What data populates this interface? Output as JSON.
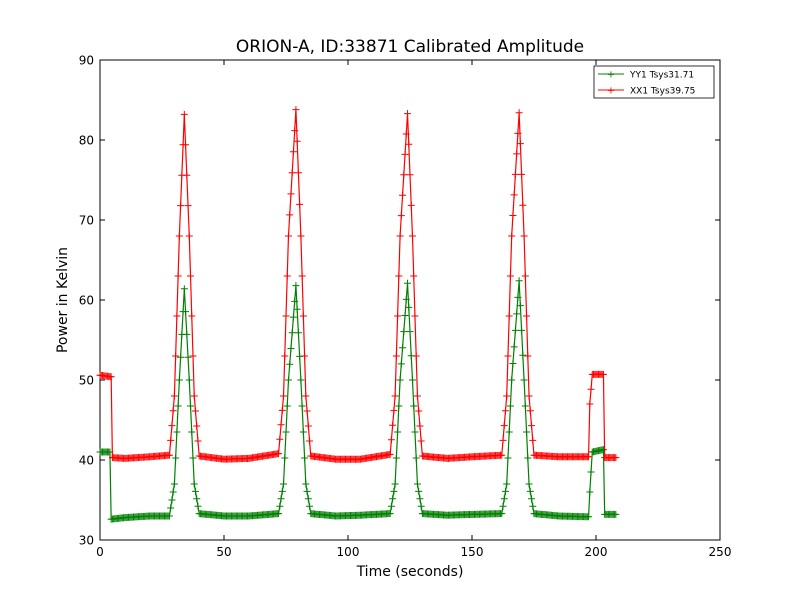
{
  "chart_data": {
    "type": "line",
    "title": "ORION-A, ID:33871 Calibrated Amplitude",
    "xlabel": "Time (seconds)",
    "ylabel": "Power in Kelvin",
    "xlim": [
      0,
      250
    ],
    "ylim": [
      30,
      90
    ],
    "xticks": [
      0,
      50,
      100,
      150,
      200,
      250
    ],
    "yticks": [
      30,
      40,
      50,
      60,
      70,
      80,
      90
    ],
    "grid": false,
    "legend_position": "top-right",
    "marker": "+",
    "series": [
      {
        "name": "YY1 Tsys31.71",
        "color": "#008000",
        "points": [
          [
            0,
            41
          ],
          [
            4,
            41
          ],
          [
            4.5,
            32.6
          ],
          [
            10,
            32.8
          ],
          [
            20,
            33
          ],
          [
            28,
            33
          ],
          [
            30,
            37
          ],
          [
            32,
            50
          ],
          [
            34,
            61.4
          ],
          [
            36,
            50
          ],
          [
            38,
            37
          ],
          [
            40,
            33.3
          ],
          [
            50,
            33
          ],
          [
            60,
            33
          ],
          [
            72,
            33.3
          ],
          [
            74,
            37
          ],
          [
            76,
            50
          ],
          [
            79,
            61.8
          ],
          [
            81,
            50
          ],
          [
            83,
            37
          ],
          [
            85,
            33.3
          ],
          [
            95,
            33
          ],
          [
            105,
            33.1
          ],
          [
            117,
            33.3
          ],
          [
            119,
            37
          ],
          [
            121,
            50
          ],
          [
            124,
            62.1
          ],
          [
            126,
            50
          ],
          [
            128,
            37
          ],
          [
            130,
            33.3
          ],
          [
            140,
            33.1
          ],
          [
            150,
            33.2
          ],
          [
            162,
            33.3
          ],
          [
            164,
            37
          ],
          [
            166,
            50
          ],
          [
            169,
            62.4
          ],
          [
            171,
            50
          ],
          [
            173,
            37
          ],
          [
            175,
            33.3
          ],
          [
            185,
            33
          ],
          [
            197,
            32.9
          ],
          [
            197.5,
            36
          ],
          [
            198.5,
            41
          ],
          [
            203,
            41.3
          ],
          [
            203.5,
            33.2
          ],
          [
            208,
            33.2
          ]
        ]
      },
      {
        "name": "XX1 Tsys39.75",
        "color": "#ff0000",
        "points": [
          [
            0,
            50.6
          ],
          [
            4.5,
            50.4
          ],
          [
            5,
            40.3
          ],
          [
            10,
            40.2
          ],
          [
            20,
            40.4
          ],
          [
            28,
            40.6
          ],
          [
            30,
            48
          ],
          [
            32,
            68
          ],
          [
            34,
            83.2
          ],
          [
            36,
            68
          ],
          [
            38,
            48
          ],
          [
            40,
            40.5
          ],
          [
            50,
            40.1
          ],
          [
            60,
            40.2
          ],
          [
            72,
            40.8
          ],
          [
            74,
            48
          ],
          [
            76,
            68
          ],
          [
            79,
            83.8
          ],
          [
            81,
            68
          ],
          [
            83,
            48
          ],
          [
            85,
            40.5
          ],
          [
            95,
            40.1
          ],
          [
            105,
            40.1
          ],
          [
            117,
            40.7
          ],
          [
            119,
            48
          ],
          [
            121,
            68
          ],
          [
            124,
            83.3
          ],
          [
            126,
            68
          ],
          [
            128,
            48
          ],
          [
            130,
            40.5
          ],
          [
            140,
            40.2
          ],
          [
            150,
            40.4
          ],
          [
            162,
            40.6
          ],
          [
            164,
            48
          ],
          [
            166,
            68
          ],
          [
            169,
            83.4
          ],
          [
            171,
            68
          ],
          [
            173,
            48
          ],
          [
            175,
            40.6
          ],
          [
            185,
            40.4
          ],
          [
            197,
            40.4
          ],
          [
            197.5,
            47
          ],
          [
            198.5,
            50.7
          ],
          [
            203,
            50.7
          ],
          [
            203.5,
            40.3
          ],
          [
            208,
            40.3
          ]
        ]
      }
    ]
  }
}
